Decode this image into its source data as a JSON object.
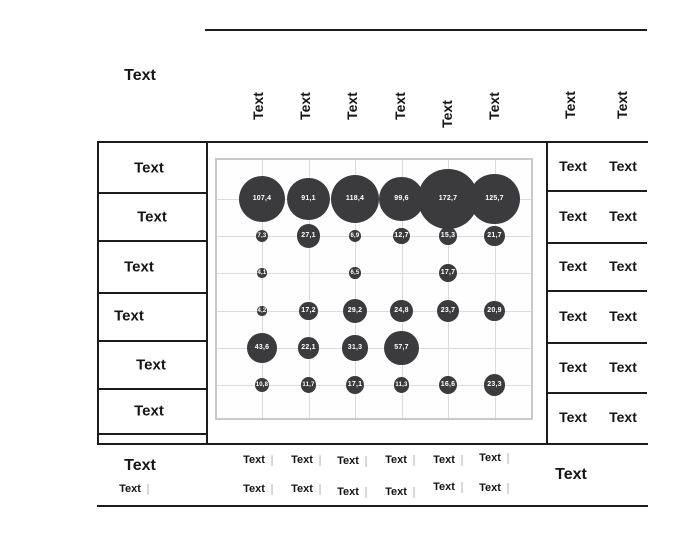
{
  "corner_label": "Text",
  "top_headers": {
    "chart_columns": [
      "Text",
      "Text",
      "Text",
      "Text",
      "Text",
      "Text"
    ],
    "right_columns": [
      "Text",
      "Text"
    ]
  },
  "left_rows": [
    "Text",
    "Text",
    "Text",
    "Text",
    "Text",
    "Text"
  ],
  "right_rows": [
    [
      "Text",
      "Text"
    ],
    [
      "Text",
      "Text"
    ],
    [
      "Text",
      "Text"
    ],
    [
      "Text",
      "Text"
    ],
    [
      "Text",
      "Text"
    ],
    [
      "Text",
      "Text"
    ]
  ],
  "footer": {
    "left_primary": "Text",
    "left_secondary": "Text",
    "right_label": "Text",
    "row1": [
      "Text",
      "Text",
      "Text",
      "Text",
      "Text",
      "Text"
    ],
    "row2": [
      "Text",
      "Text",
      "Text",
      "Text",
      "Text",
      "Text"
    ]
  },
  "chart_data": {
    "type": "scatter",
    "subtype": "bubble-grid",
    "grid": true,
    "n_columns": 6,
    "n_rows": 6,
    "column_labels": [
      "Text",
      "Text",
      "Text",
      "Text",
      "Text",
      "Text"
    ],
    "row_labels": [
      "Text",
      "Text",
      "Text",
      "Text",
      "Text",
      "Text"
    ],
    "values": [
      [
        107.4,
        91.1,
        118.4,
        99.6,
        172.7,
        125.7
      ],
      [
        7.3,
        27.1,
        6.9,
        12.7,
        15.3,
        21.7
      ],
      [
        4.1,
        null,
        6.5,
        null,
        17.7,
        null
      ],
      [
        4.2,
        17.2,
        29.2,
        24.8,
        23.7,
        20.9
      ],
      [
        43.6,
        22.1,
        31.3,
        57.7,
        null,
        null
      ],
      [
        10.8,
        11.7,
        17.1,
        11.3,
        16.6,
        23.3
      ]
    ],
    "display_values": [
      [
        "107,4",
        "91,1",
        "118,4",
        "99,6",
        "172,7",
        "125,7"
      ],
      [
        "7,3",
        "27,1",
        "6,9",
        "12,7",
        "15,3",
        "21,7"
      ],
      [
        "4,1",
        null,
        "6,5",
        null,
        "17,7",
        null
      ],
      [
        "4,2",
        "17,2",
        "29,2",
        "24,8",
        "23,7",
        "20,9"
      ],
      [
        "43,6",
        "22,1",
        "31,3",
        "57,7",
        null,
        null
      ],
      [
        "10,8",
        "11,7",
        "17,1",
        "11,3",
        "16,6",
        "23,3"
      ]
    ],
    "bubble_color": "#3b3b3d",
    "label_color": "#ffffff",
    "gridline_color": "#dcdcdc"
  },
  "colors": {
    "line": "#1c1c1c",
    "text": "#151515",
    "frame": "#c9c9c9",
    "tick": "#d7d7d7"
  }
}
